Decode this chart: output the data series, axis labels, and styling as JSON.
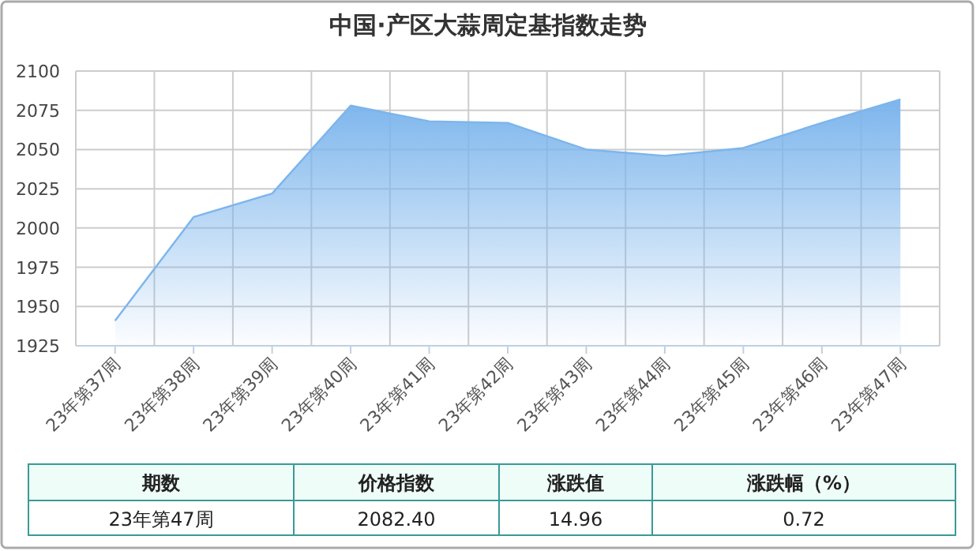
{
  "chart_data": [
    {
      "type": "area",
      "title": "中国·产区大蒜周定基指数走势",
      "categories": [
        "23年第37周",
        "23年第38周",
        "23年第39周",
        "23年第40周",
        "23年第41周",
        "23年第42周",
        "23年第43周",
        "23年第44周",
        "23年第45周",
        "23年第46周",
        "23年第47周"
      ],
      "values": [
        1941,
        2007,
        2022,
        2078,
        2068,
        2067,
        2050,
        2046,
        2051,
        2067,
        2082
      ],
      "color": "#7cb5ec",
      "ylim": [
        1925,
        2100
      ],
      "yticks": [
        1925,
        1950,
        1975,
        2000,
        2025,
        2050,
        2075,
        2100
      ],
      "grid": true
    },
    {
      "type": "other",
      "annotations": [
        "期数",
        "价格指数",
        "涨跌值",
        "涨跌幅（%）",
        "23年第47周",
        "2082.40",
        "14.96",
        "0.72"
      ]
    }
  ]
}
